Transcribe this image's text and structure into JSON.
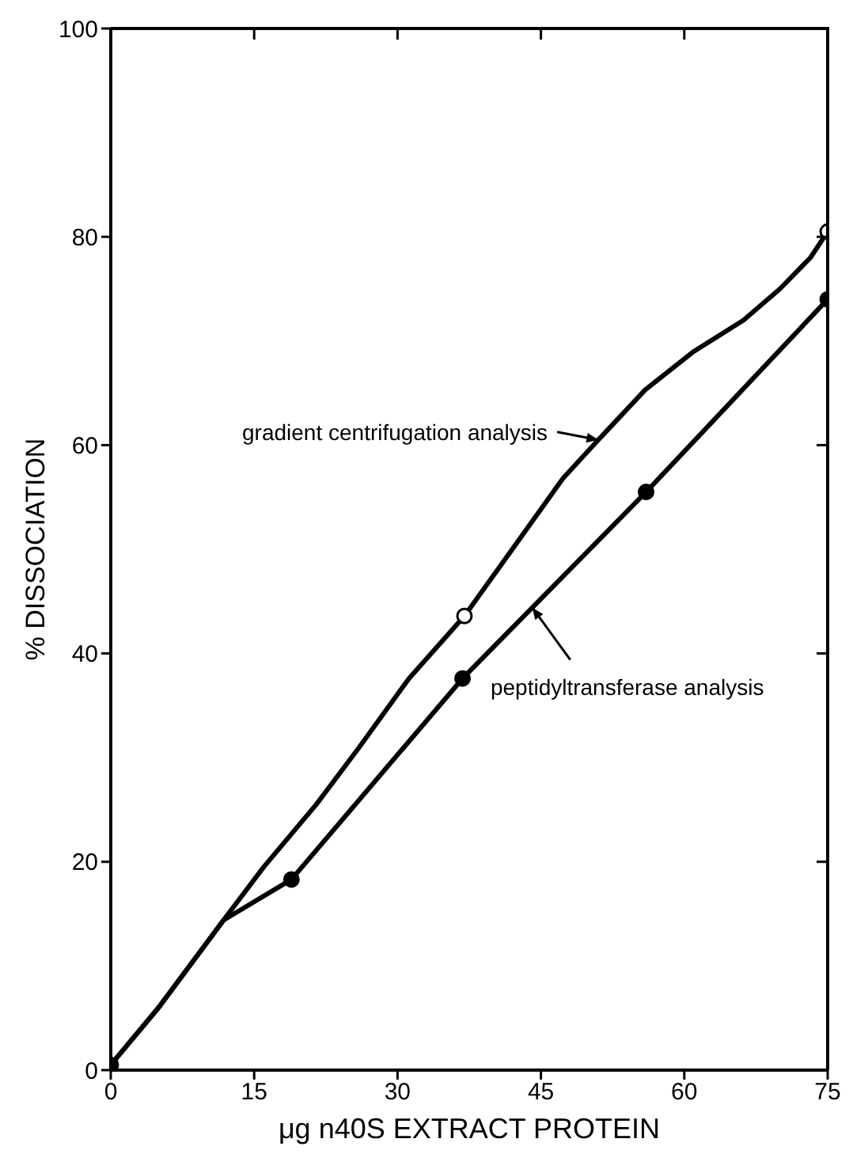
{
  "chart_data": {
    "type": "line",
    "xlabel": "μg n40S EXTRACT PROTEIN",
    "ylabel": "% DISSOCIATION",
    "xlim": [
      0,
      75
    ],
    "xticks": [
      0,
      15,
      30,
      45,
      60,
      75
    ],
    "ylim": [
      0,
      100
    ],
    "yticks": [
      0,
      20,
      40,
      60,
      80,
      100
    ],
    "grid": false,
    "line_style": "solid",
    "series": [
      {
        "color": "#000000",
        "marker": "none",
        "x": [
          0,
          5,
          11.8,
          16,
          21.5,
          26,
          31.2,
          37,
          42,
          47.3,
          51,
          55.9,
          61,
          66.2,
          70,
          73.2,
          75
        ],
        "values": [
          0.5,
          6,
          14.4,
          19.5,
          25.5,
          31,
          37.6,
          43.6,
          50,
          56.8,
          60.5,
          65.3,
          69,
          72,
          75,
          78,
          80.5
        ]
      },
      {
        "color": "#000000",
        "marker": "none",
        "x": [
          0,
          5,
          11.8,
          18.9,
          36.8,
          56,
          75
        ],
        "values": [
          0.5,
          6,
          14.4,
          18.3,
          37.6,
          55.5,
          74
        ]
      },
      {
        "type": "scatter",
        "color": "#ffffff",
        "marker": "circle",
        "x": [
          37,
          75
        ],
        "values": [
          43.6,
          80.5
        ]
      },
      {
        "type": "scatter",
        "color": "#000000",
        "marker": "circle",
        "x": [
          0,
          18.9,
          36.8,
          56,
          75
        ],
        "values": [
          0.5,
          18.3,
          37.6,
          55.5,
          74
        ]
      }
    ],
    "annotations": [
      {
        "text": "gradient centrifugation analysis",
        "x": 51,
        "y": 60.5
      },
      {
        "text": "peptidyltransferase analysis",
        "x": 44.1,
        "y": 44.4
      }
    ]
  }
}
